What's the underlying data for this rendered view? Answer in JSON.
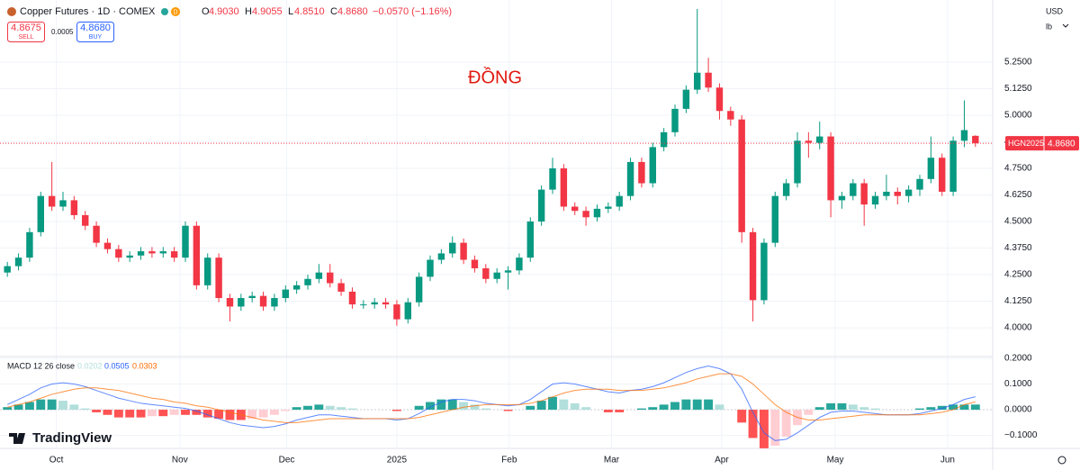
{
  "header": {
    "symbol": "Copper Futures · 1D · COMEX",
    "interval_badge": "D",
    "o_label": "O",
    "open": "4.9030",
    "h_label": "H",
    "high": "4.9055",
    "l_label": "L",
    "low": "4.8510",
    "c_label": "C",
    "close": "4.8680",
    "change": "−0.0570 (−1.16%)",
    "sell_price": "4.8675",
    "sell": "SELL",
    "spread": "0.0005",
    "buy_price": "4.8680",
    "buy": "BUY",
    "currency": "USD",
    "unit": "lb",
    "annotation": "ĐỒNG",
    "price_tag_symbol": "HGN2025",
    "price_tag": "4.8680",
    "brand": "TradingView"
  },
  "chart_data": [
    {
      "type": "candlestick",
      "up_color": "#089981",
      "down_color": "#f23645",
      "grid": true,
      "xlim": [
        -0.5,
        87.5
      ],
      "xticks": [
        {
          "value": 4.4,
          "label": "Oct"
        },
        {
          "value": 15.5,
          "label": "Nov"
        },
        {
          "value": 25.1,
          "label": "Dec"
        },
        {
          "value": 35.0,
          "label": "2025"
        },
        {
          "value": 45.1,
          "label": "Feb"
        },
        {
          "value": 54.3,
          "label": "Mar"
        },
        {
          "value": 64.2,
          "label": "Apr"
        },
        {
          "value": 74.4,
          "label": "May"
        },
        {
          "value": 84.5,
          "label": "Jun"
        }
      ],
      "ylim": [
        3.869,
        5.542
      ],
      "yticks": [
        {
          "value": 4.0,
          "label": "4.0000"
        },
        {
          "value": 4.125,
          "label": "4.1250"
        },
        {
          "value": 4.25,
          "label": "4.2500"
        },
        {
          "value": 4.375,
          "label": "4.3750"
        },
        {
          "value": 4.5,
          "label": "4.5000"
        },
        {
          "value": 4.625,
          "label": "4.6250"
        },
        {
          "value": 4.75,
          "label": "4.7500"
        },
        {
          "value": 4.875,
          "label": "4.8750"
        },
        {
          "value": 5.0,
          "label": "5.0000"
        },
        {
          "value": 5.125,
          "label": "5.1250"
        },
        {
          "value": 5.25,
          "label": "5.2500"
        }
      ],
      "open": [
        4.26,
        4.29,
        4.33,
        4.45,
        4.62,
        4.57,
        4.6,
        4.53,
        4.48,
        4.4,
        4.37,
        4.33,
        4.34,
        4.36,
        4.35,
        4.36,
        4.33,
        4.48,
        4.2,
        4.33,
        4.14,
        4.1,
        4.14,
        4.15,
        4.1,
        4.14,
        4.18,
        4.2,
        4.23,
        4.26,
        4.21,
        4.17,
        4.11,
        4.11,
        4.12,
        4.11,
        4.04,
        4.12,
        4.24,
        4.32,
        4.35,
        4.4,
        4.32,
        4.28,
        4.23,
        4.26,
        4.27,
        4.33,
        4.5,
        4.65,
        4.75,
        4.57,
        4.55,
        4.52,
        4.56,
        4.57,
        4.62,
        4.78,
        4.68,
        4.85,
        4.92,
        5.03,
        5.12,
        5.2,
        5.13,
        5.02,
        4.98,
        4.45,
        4.13,
        4.4,
        4.62,
        4.68,
        4.88,
        4.87,
        4.9,
        4.6,
        4.62,
        4.68,
        4.58,
        4.62,
        4.64,
        4.62,
        4.65,
        4.7,
        4.8,
        4.64,
        4.88,
        4.903
      ],
      "high": [
        4.31,
        4.35,
        4.47,
        4.64,
        4.78,
        4.64,
        4.62,
        4.55,
        4.5,
        4.42,
        4.39,
        4.36,
        4.38,
        4.38,
        4.38,
        4.38,
        4.5,
        4.5,
        4.35,
        4.35,
        4.16,
        4.16,
        4.17,
        4.17,
        4.16,
        4.2,
        4.22,
        4.25,
        4.3,
        4.3,
        4.23,
        4.19,
        4.13,
        4.14,
        4.14,
        4.13,
        4.14,
        4.26,
        4.34,
        4.37,
        4.43,
        4.42,
        4.34,
        4.3,
        4.28,
        4.29,
        4.35,
        4.52,
        4.67,
        4.8,
        4.77,
        4.59,
        4.57,
        4.58,
        4.59,
        4.64,
        4.8,
        4.8,
        4.87,
        4.94,
        5.05,
        5.14,
        5.5,
        5.27,
        5.15,
        5.04,
        5.0,
        4.47,
        4.42,
        4.64,
        4.7,
        4.92,
        4.92,
        4.97,
        4.92,
        4.64,
        4.7,
        4.7,
        4.64,
        4.72,
        4.66,
        4.67,
        4.72,
        4.9,
        4.82,
        4.9,
        5.07,
        4.9055
      ],
      "low": [
        4.24,
        4.27,
        4.31,
        4.43,
        4.55,
        4.55,
        4.51,
        4.46,
        4.38,
        4.35,
        4.31,
        4.31,
        4.32,
        4.33,
        4.33,
        4.31,
        4.31,
        4.18,
        4.18,
        4.12,
        4.03,
        4.08,
        4.12,
        4.08,
        4.08,
        4.12,
        4.16,
        4.18,
        4.21,
        4.19,
        4.15,
        4.09,
        4.09,
        4.09,
        4.09,
        4.01,
        4.02,
        4.1,
        4.22,
        4.3,
        4.33,
        4.3,
        4.26,
        4.21,
        4.21,
        4.18,
        4.25,
        4.31,
        4.48,
        4.63,
        4.55,
        4.53,
        4.48,
        4.5,
        4.54,
        4.55,
        4.6,
        4.66,
        4.66,
        4.83,
        4.9,
        5.01,
        5.1,
        5.11,
        4.98,
        4.95,
        4.4,
        4.03,
        4.11,
        4.38,
        4.6,
        4.66,
        4.8,
        4.84,
        4.52,
        4.56,
        4.6,
        4.48,
        4.56,
        4.6,
        4.58,
        4.59,
        4.62,
        4.68,
        4.62,
        4.62,
        4.85,
        4.851
      ],
      "close": [
        4.29,
        4.33,
        4.45,
        4.62,
        4.57,
        4.6,
        4.53,
        4.48,
        4.4,
        4.37,
        4.33,
        4.34,
        4.36,
        4.35,
        4.36,
        4.33,
        4.48,
        4.2,
        4.33,
        4.14,
        4.1,
        4.14,
        4.15,
        4.1,
        4.14,
        4.18,
        4.2,
        4.23,
        4.26,
        4.21,
        4.17,
        4.11,
        4.11,
        4.12,
        4.11,
        4.04,
        4.12,
        4.24,
        4.32,
        4.35,
        4.4,
        4.32,
        4.28,
        4.23,
        4.26,
        4.27,
        4.33,
        4.5,
        4.65,
        4.75,
        4.57,
        4.55,
        4.52,
        4.56,
        4.57,
        4.62,
        4.78,
        4.68,
        4.85,
        4.92,
        5.03,
        5.12,
        5.2,
        5.13,
        5.02,
        4.98,
        4.45,
        4.13,
        4.4,
        4.62,
        4.68,
        4.88,
        4.87,
        4.9,
        4.6,
        4.62,
        4.68,
        4.58,
        4.62,
        4.64,
        4.62,
        4.65,
        4.7,
        4.8,
        4.64,
        4.88,
        4.93,
        4.868
      ]
    },
    {
      "type": "macd",
      "label": "MACD 12 26 close",
      "ylim": [
        -0.147,
        0.2035
      ],
      "yticks": [
        {
          "value": 0.2,
          "label": "0.2000"
        },
        {
          "value": 0.1,
          "label": "0.1000"
        },
        {
          "value": 0,
          "label": "0.0000"
        },
        {
          "value": -0.1,
          "label": "−0.1000"
        }
      ],
      "histogram": {
        "colors": [
          "#26a69a",
          "#b2dfdb",
          "#ff5252",
          "#ffcdd2"
        ],
        "legend_color": "#b2dfdb",
        "values": [
          0.01,
          0.02,
          0.03,
          0.04,
          0.04,
          0.035,
          0.02,
          0.005,
          -0.01,
          -0.02,
          -0.03,
          -0.03,
          -0.03,
          -0.025,
          -0.025,
          -0.02,
          -0.02,
          -0.02,
          -0.03,
          -0.035,
          -0.04,
          -0.04,
          -0.035,
          -0.03,
          -0.02,
          -0.005,
          0.01,
          0.015,
          0.02,
          0.015,
          0.01,
          0.005,
          0,
          0,
          0,
          -0.005,
          0,
          0.015,
          0.03,
          0.04,
          0.04,
          0.03,
          0.02,
          0.005,
          0,
          -0.005,
          0,
          0.015,
          0.035,
          0.05,
          0.04,
          0.025,
          0.01,
          0,
          -0.01,
          -0.01,
          0,
          0.005,
          0.01,
          0.02,
          0.03,
          0.04,
          0.04,
          0.04,
          0.02,
          0,
          -0.05,
          -0.11,
          -0.15,
          -0.14,
          -0.105,
          -0.06,
          -0.02,
          0.01,
          0.025,
          0.025,
          0.02,
          0.01,
          0.005,
          0,
          0,
          0,
          0.005,
          0.01,
          0.015,
          0.02,
          0.02,
          0.0202
        ]
      },
      "series": [
        {
          "color": "#2962ff",
          "values": [
            0.02,
            0.04,
            0.06,
            0.085,
            0.1,
            0.105,
            0.1,
            0.09,
            0.075,
            0.06,
            0.045,
            0.035,
            0.025,
            0.02,
            0.015,
            0.01,
            0.005,
            -0.005,
            -0.02,
            -0.035,
            -0.05,
            -0.06,
            -0.065,
            -0.07,
            -0.065,
            -0.055,
            -0.04,
            -0.03,
            -0.02,
            -0.02,
            -0.025,
            -0.03,
            -0.035,
            -0.035,
            -0.035,
            -0.04,
            -0.035,
            -0.015,
            0.01,
            0.03,
            0.04,
            0.04,
            0.035,
            0.025,
            0.02,
            0.015,
            0.02,
            0.04,
            0.07,
            0.1,
            0.105,
            0.1,
            0.09,
            0.08,
            0.07,
            0.065,
            0.075,
            0.08,
            0.09,
            0.105,
            0.125,
            0.145,
            0.16,
            0.17,
            0.16,
            0.14,
            0.08,
            -0.01,
            -0.09,
            -0.12,
            -0.115,
            -0.09,
            -0.06,
            -0.03,
            -0.01,
            -0.005,
            -0.005,
            -0.01,
            -0.015,
            -0.02,
            -0.02,
            -0.02,
            -0.015,
            -0.005,
            0.005,
            0.02,
            0.04,
            0.0505
          ]
        },
        {
          "color": "#ff6d00",
          "values": [
            0.01,
            0.02,
            0.03,
            0.045,
            0.06,
            0.07,
            0.08,
            0.085,
            0.085,
            0.08,
            0.075,
            0.065,
            0.055,
            0.045,
            0.04,
            0.03,
            0.025,
            0.015,
            0.01,
            0.0,
            -0.01,
            -0.02,
            -0.03,
            -0.04,
            -0.045,
            -0.05,
            -0.05,
            -0.045,
            -0.04,
            -0.035,
            -0.035,
            -0.035,
            -0.035,
            -0.035,
            -0.035,
            -0.035,
            -0.035,
            -0.03,
            -0.02,
            -0.01,
            0.0,
            0.01,
            0.015,
            0.02,
            0.02,
            0.02,
            0.02,
            0.025,
            0.035,
            0.05,
            0.065,
            0.075,
            0.08,
            0.08,
            0.08,
            0.075,
            0.075,
            0.075,
            0.08,
            0.085,
            0.095,
            0.105,
            0.12,
            0.13,
            0.14,
            0.14,
            0.13,
            0.1,
            0.06,
            0.02,
            -0.01,
            -0.03,
            -0.04,
            -0.04,
            -0.035,
            -0.03,
            -0.025,
            -0.02,
            -0.02,
            -0.02,
            -0.02,
            -0.02,
            -0.02,
            -0.015,
            -0.01,
            0.0,
            0.02,
            0.0303
          ]
        }
      ]
    }
  ]
}
